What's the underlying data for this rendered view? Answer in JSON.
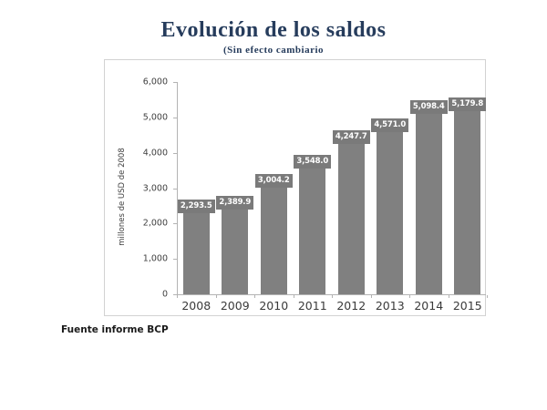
{
  "header": {
    "title": "Evolución de los saldos",
    "subtitle": "(Sin efecto cambiario",
    "title_color": "#263c5c"
  },
  "footer": {
    "source": "Fuente informe BCP"
  },
  "chart_data": {
    "type": "bar",
    "title": "Evolución de los saldos",
    "subtitle": "(Sin efecto cambiario",
    "categories": [
      "2008",
      "2009",
      "2010",
      "2011",
      "2012",
      "2013",
      "2014",
      "2015"
    ],
    "values": [
      2293.5,
      2389.9,
      3004.2,
      3548.0,
      4247.7,
      4571.0,
      5098.4,
      5179.8
    ],
    "value_labels": [
      "2,293.5",
      "2,389.9",
      "3,004.2",
      "3,548.0",
      "4,247.7",
      "4,571.0",
      "5,098.4",
      "5,179.8"
    ],
    "ylabel": "millones de USD de 2008",
    "xlabel": "",
    "ylim": [
      0,
      6000
    ],
    "y_ticks": [
      0,
      1000,
      2000,
      3000,
      4000,
      5000,
      6000
    ],
    "y_tick_labels": [
      "0",
      "1,000",
      "2,000",
      "3,000",
      "4,000",
      "5,000",
      "6,000"
    ],
    "grid": false,
    "legend": false,
    "bar_color": "#808080",
    "value_label_bg": "#7a7a7a",
    "value_label_text_color": "#ffffff",
    "axis_color": "#b3b3b3",
    "source": "Fuente informe BCP"
  }
}
